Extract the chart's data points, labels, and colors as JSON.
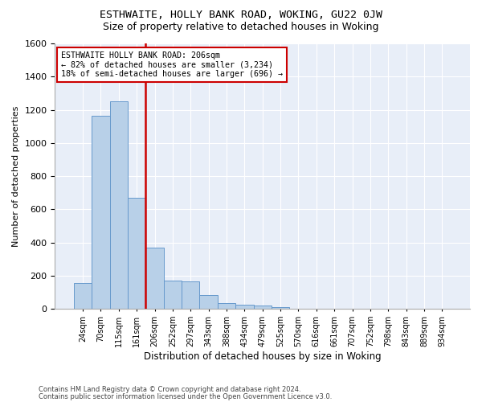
{
  "title1": "ESTHWAITE, HOLLY BANK ROAD, WOKING, GU22 0JW",
  "title2": "Size of property relative to detached houses in Woking",
  "xlabel": "Distribution of detached houses by size in Woking",
  "ylabel": "Number of detached properties",
  "footer1": "Contains HM Land Registry data © Crown copyright and database right 2024.",
  "footer2": "Contains public sector information licensed under the Open Government Licence v3.0.",
  "categories": [
    "24sqm",
    "70sqm",
    "115sqm",
    "161sqm",
    "206sqm",
    "252sqm",
    "297sqm",
    "343sqm",
    "388sqm",
    "434sqm",
    "479sqm",
    "525sqm",
    "570sqm",
    "616sqm",
    "661sqm",
    "707sqm",
    "752sqm",
    "798sqm",
    "843sqm",
    "889sqm",
    "934sqm"
  ],
  "values": [
    155,
    1165,
    1250,
    670,
    370,
    170,
    165,
    85,
    35,
    25,
    20,
    10,
    0,
    0,
    0,
    0,
    0,
    0,
    0,
    0,
    0
  ],
  "bar_color": "#b8d0e8",
  "bar_edge_color": "#6699cc",
  "vline_color": "#cc0000",
  "legend_text1": "ESTHWAITE HOLLY BANK ROAD: 206sqm",
  "legend_text2": "← 82% of detached houses are smaller (3,234)",
  "legend_text3": "18% of semi-detached houses are larger (696) →",
  "legend_box_color": "#cc0000",
  "ylim": [
    0,
    1600
  ],
  "yticks": [
    0,
    200,
    400,
    600,
    800,
    1000,
    1200,
    1400,
    1600
  ],
  "background_color": "#ffffff",
  "plot_bg_color": "#e8eef8",
  "grid_color": "#ffffff"
}
